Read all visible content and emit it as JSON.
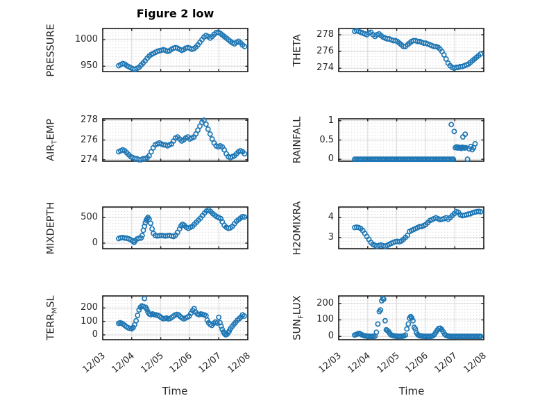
{
  "figure": {
    "title": "Figure 2 low",
    "xlabel": "Time",
    "xtick_labels": [
      "12/03",
      "12/04",
      "12/05",
      "12/06",
      "12/07",
      "12/08"
    ],
    "xlim_days": [
      0,
      5
    ],
    "colors": {
      "marker": "#1f77b4",
      "axes_border": "#1b1b1b",
      "major_grid": "#d9d9d9",
      "minor_grid_dots": "#c4c4c4",
      "text": "#262626"
    }
  },
  "chart_data": [
    {
      "type": "scatter",
      "id": "pressure",
      "title": "Figure 2 low",
      "position": {
        "row": 0,
        "col": 0
      },
      "ylabel_parts": [
        {
          "text": "PRESSURE"
        }
      ],
      "ytick_labels": [
        "950",
        "1000"
      ],
      "ytick_values": [
        950,
        1000
      ],
      "ylim": [
        940,
        1021
      ],
      "x_days": [
        0.55,
        0.62,
        0.69,
        0.76,
        0.83,
        0.9,
        0.97,
        1.04,
        1.11,
        1.18,
        1.25,
        1.32,
        1.39,
        1.46,
        1.53,
        1.6,
        1.67,
        1.74,
        1.81,
        1.88,
        1.95,
        2.02,
        2.09,
        2.16,
        2.23,
        2.3,
        2.37,
        2.44,
        2.51,
        2.58,
        2.65,
        2.72,
        2.79,
        2.86,
        2.93,
        3.0,
        3.07,
        3.14,
        3.21,
        3.28,
        3.35,
        3.42,
        3.49,
        3.56,
        3.63,
        3.7,
        3.77,
        3.84,
        3.91,
        3.98,
        4.05,
        4.12,
        4.19,
        4.26,
        4.33,
        4.4,
        4.47,
        4.54,
        4.61,
        4.68,
        4.75,
        4.82,
        4.89
      ],
      "values": [
        951,
        953,
        955,
        954,
        951,
        949,
        947,
        945,
        944,
        946,
        948,
        952,
        956,
        960,
        965,
        969,
        972,
        974,
        976,
        978,
        979,
        980,
        981,
        980,
        978,
        979,
        982,
        984,
        985,
        984,
        982,
        980,
        981,
        984,
        985,
        984,
        982,
        983,
        986,
        990,
        995,
        1000,
        1005,
        1008,
        1006,
        1003,
        1006,
        1010,
        1013,
        1014,
        1012,
        1009,
        1006,
        1003,
        1000,
        997,
        994,
        992,
        995,
        997,
        994,
        990,
        987
      ]
    },
    {
      "type": "scatter",
      "id": "theta",
      "position": {
        "row": 0,
        "col": 1
      },
      "ylabel_parts": [
        {
          "text": "THETA"
        }
      ],
      "ytick_labels": [
        "274",
        "276",
        "278"
      ],
      "ytick_values": [
        274,
        276,
        278
      ],
      "ylim": [
        273.6,
        278.75
      ],
      "x_days": [
        0.55,
        0.62,
        0.69,
        0.76,
        0.83,
        0.9,
        0.97,
        1.04,
        1.11,
        1.18,
        1.25,
        1.32,
        1.39,
        1.46,
        1.53,
        1.6,
        1.67,
        1.74,
        1.81,
        1.88,
        1.95,
        2.02,
        2.09,
        2.16,
        2.23,
        2.3,
        2.37,
        2.44,
        2.51,
        2.58,
        2.65,
        2.72,
        2.79,
        2.86,
        2.93,
        3.0,
        3.07,
        3.14,
        3.21,
        3.28,
        3.35,
        3.42,
        3.49,
        3.56,
        3.63,
        3.7,
        3.77,
        3.84,
        3.91,
        3.98,
        4.05,
        4.12,
        4.19,
        4.26,
        4.33,
        4.4,
        4.47,
        4.54,
        4.61,
        4.68,
        4.75,
        4.82,
        4.89
      ],
      "values": [
        278.4,
        278.5,
        278.4,
        278.3,
        278.2,
        278.1,
        278.0,
        278.2,
        278.3,
        278.0,
        277.8,
        278.0,
        278.1,
        277.9,
        277.7,
        277.6,
        277.5,
        277.5,
        277.4,
        277.3,
        277.3,
        277.2,
        277.0,
        276.8,
        276.6,
        276.6,
        276.8,
        277.0,
        277.2,
        277.3,
        277.3,
        277.2,
        277.2,
        277.1,
        277.0,
        277.0,
        276.9,
        276.8,
        276.7,
        276.6,
        276.6,
        276.5,
        276.3,
        276.0,
        275.6,
        275.1,
        274.6,
        274.3,
        274.1,
        274.0,
        274.1,
        274.1,
        274.2,
        274.2,
        274.3,
        274.4,
        274.5,
        274.7,
        274.9,
        275.1,
        275.3,
        275.5,
        275.7
      ]
    },
    {
      "type": "scatter",
      "id": "airtemp",
      "position": {
        "row": 1,
        "col": 0
      },
      "ylabel_parts": [
        {
          "text": "AIR"
        },
        {
          "text": "T",
          "sub": true
        },
        {
          "text": "EMP"
        }
      ],
      "ytick_labels": [
        "274",
        "276",
        "278"
      ],
      "ytick_values": [
        274,
        276,
        278
      ],
      "ylim": [
        273.85,
        278.15
      ],
      "x_days": [
        0.55,
        0.62,
        0.69,
        0.76,
        0.83,
        0.9,
        0.97,
        1.04,
        1.11,
        1.18,
        1.25,
        1.32,
        1.39,
        1.46,
        1.53,
        1.6,
        1.67,
        1.74,
        1.81,
        1.88,
        1.95,
        2.02,
        2.09,
        2.16,
        2.23,
        2.3,
        2.37,
        2.44,
        2.51,
        2.58,
        2.65,
        2.72,
        2.79,
        2.86,
        2.93,
        3.0,
        3.07,
        3.14,
        3.21,
        3.28,
        3.35,
        3.42,
        3.49,
        3.56,
        3.63,
        3.7,
        3.77,
        3.84,
        3.91,
        3.98,
        4.05,
        4.12,
        4.19,
        4.26,
        4.33,
        4.4,
        4.47,
        4.54,
        4.61,
        4.68,
        4.75,
        4.82,
        4.89
      ],
      "values": [
        274.8,
        274.9,
        275.0,
        274.9,
        274.7,
        274.5,
        274.3,
        274.2,
        274.1,
        274.1,
        274.0,
        274.0,
        274.1,
        274.1,
        274.2,
        274.4,
        274.8,
        275.2,
        275.5,
        275.6,
        275.7,
        275.6,
        275.5,
        275.5,
        275.4,
        275.5,
        275.6,
        275.9,
        276.2,
        276.3,
        276.1,
        275.9,
        276.0,
        276.2,
        276.3,
        276.1,
        276.2,
        276.3,
        276.6,
        277.0,
        277.4,
        277.8,
        278.0,
        277.6,
        277.1,
        276.6,
        276.1,
        275.7,
        275.4,
        275.3,
        275.4,
        275.3,
        275.0,
        274.6,
        274.3,
        274.2,
        274.3,
        274.4,
        274.6,
        274.8,
        274.9,
        274.8,
        274.6
      ]
    },
    {
      "type": "scatter",
      "id": "rainfall",
      "position": {
        "row": 1,
        "col": 1
      },
      "ylabel_parts": [
        {
          "text": "RAINFALL"
        }
      ],
      "ytick_labels": [
        "0",
        "0.5",
        "1"
      ],
      "ytick_values": [
        0,
        0.5,
        1
      ],
      "ylim": [
        -0.05,
        1.05
      ],
      "x_days": [
        0.55,
        0.6,
        0.65,
        0.7,
        0.75,
        0.8,
        0.85,
        0.9,
        0.95,
        1.0,
        1.05,
        1.1,
        1.15,
        1.2,
        1.25,
        1.3,
        1.35,
        1.4,
        1.45,
        1.5,
        1.55,
        1.6,
        1.65,
        1.7,
        1.75,
        1.8,
        1.85,
        1.9,
        1.95,
        2.0,
        2.05,
        2.1,
        2.15,
        2.2,
        2.25,
        2.3,
        2.35,
        2.4,
        2.45,
        2.5,
        2.55,
        2.6,
        2.65,
        2.7,
        2.75,
        2.8,
        2.85,
        2.9,
        2.95,
        3.0,
        3.05,
        3.1,
        3.15,
        3.2,
        3.25,
        3.3,
        3.35,
        3.4,
        3.45,
        3.5,
        3.55,
        3.6,
        3.65,
        3.7,
        3.75,
        3.8,
        3.85,
        3.9,
        3.95,
        3.88,
        3.98,
        4.02,
        4.06,
        4.1,
        4.14,
        4.18,
        4.22,
        4.26,
        4.3,
        4.34,
        4.38,
        4.28,
        4.36,
        4.44,
        4.5,
        4.55,
        4.6,
        4.65,
        4.7
      ],
      "values": [
        0,
        0,
        0,
        0,
        0,
        0,
        0,
        0,
        0,
        0,
        0,
        0,
        0,
        0,
        0,
        0,
        0,
        0,
        0,
        0,
        0,
        0,
        0,
        0,
        0,
        0,
        0,
        0,
        0,
        0,
        0,
        0,
        0,
        0,
        0,
        0,
        0,
        0,
        0,
        0,
        0,
        0,
        0,
        0,
        0,
        0,
        0,
        0,
        0,
        0,
        0,
        0,
        0,
        0,
        0,
        0,
        0,
        0,
        0,
        0,
        0,
        0,
        0,
        0,
        0,
        0,
        0,
        0,
        0,
        0.9,
        0.72,
        0.3,
        0.32,
        0.29,
        0.31,
        0.3,
        0.28,
        0.31,
        0.3,
        0.29,
        0.3,
        0.58,
        0.65,
        0,
        0.27,
        0.33,
        0.25,
        0.3,
        0.4
      ]
    },
    {
      "type": "scatter",
      "id": "mixdepth",
      "position": {
        "row": 2,
        "col": 0
      },
      "ylabel_parts": [
        {
          "text": "MIXDEPTH"
        }
      ],
      "ytick_labels": [
        "0",
        "500"
      ],
      "ytick_values": [
        0,
        500
      ],
      "ylim": [
        -109,
        708
      ],
      "x_days": [
        0.55,
        0.62,
        0.69,
        0.76,
        0.83,
        0.9,
        0.97,
        1.04,
        1.08,
        1.11,
        1.18,
        1.25,
        1.32,
        1.36,
        1.4,
        1.44,
        1.47,
        1.5,
        1.53,
        1.56,
        1.6,
        1.65,
        1.7,
        1.75,
        1.81,
        1.88,
        1.95,
        2.02,
        2.09,
        2.16,
        2.23,
        2.3,
        2.37,
        2.44,
        2.51,
        2.58,
        2.65,
        2.7,
        2.75,
        2.81,
        2.88,
        2.95,
        3.02,
        3.09,
        3.16,
        3.23,
        3.3,
        3.37,
        3.44,
        3.51,
        3.58,
        3.65,
        3.72,
        3.79,
        3.86,
        3.93,
        4.0,
        4.07,
        4.12,
        4.19,
        4.26,
        4.33,
        4.4,
        4.47,
        4.54,
        4.61,
        4.68,
        4.75,
        4.82,
        4.89
      ],
      "values": [
        90,
        105,
        110,
        100,
        95,
        85,
        65,
        40,
        15,
        45,
        80,
        95,
        100,
        150,
        250,
        330,
        400,
        450,
        480,
        505,
        470,
        390,
        280,
        190,
        150,
        140,
        145,
        150,
        145,
        140,
        145,
        150,
        140,
        130,
        155,
        210,
        280,
        340,
        370,
        350,
        310,
        290,
        310,
        330,
        370,
        410,
        450,
        490,
        540,
        590,
        630,
        650,
        620,
        580,
        550,
        520,
        500,
        480,
        420,
        350,
        310,
        290,
        300,
        330,
        380,
        430,
        460,
        490,
        520,
        510
      ]
    },
    {
      "type": "scatter",
      "id": "h2omixra",
      "position": {
        "row": 2,
        "col": 1
      },
      "ylabel_parts": [
        {
          "text": "H2OMIXRA"
        }
      ],
      "ytick_labels": [
        "3",
        "4"
      ],
      "ytick_values": [
        3,
        4
      ],
      "ylim": [
        2.43,
        4.54
      ],
      "x_days": [
        0.55,
        0.62,
        0.69,
        0.76,
        0.83,
        0.9,
        0.97,
        1.04,
        1.11,
        1.18,
        1.25,
        1.32,
        1.39,
        1.46,
        1.53,
        1.6,
        1.67,
        1.74,
        1.81,
        1.88,
        1.95,
        2.02,
        2.09,
        2.16,
        2.23,
        2.3,
        2.37,
        2.44,
        2.51,
        2.58,
        2.65,
        2.72,
        2.79,
        2.86,
        2.93,
        3.0,
        3.07,
        3.14,
        3.21,
        3.28,
        3.35,
        3.42,
        3.49,
        3.56,
        3.63,
        3.7,
        3.77,
        3.84,
        3.91,
        3.98,
        4.05,
        4.12,
        4.19,
        4.26,
        4.33,
        4.4,
        4.47,
        4.54,
        4.61,
        4.68,
        4.75,
        4.82,
        4.89
      ],
      "values": [
        3.5,
        3.52,
        3.5,
        3.45,
        3.35,
        3.2,
        3.05,
        2.9,
        2.75,
        2.65,
        2.6,
        2.55,
        2.6,
        2.62,
        2.58,
        2.55,
        2.6,
        2.65,
        2.7,
        2.75,
        2.78,
        2.8,
        2.78,
        2.82,
        2.9,
        3.0,
        3.1,
        3.3,
        3.35,
        3.4,
        3.45,
        3.5,
        3.55,
        3.55,
        3.6,
        3.65,
        3.75,
        3.85,
        3.9,
        3.95,
        4.0,
        3.95,
        3.9,
        3.92,
        3.95,
        4.0,
        3.92,
        4.0,
        4.1,
        4.2,
        4.3,
        4.28,
        4.15,
        4.1,
        4.12,
        4.15,
        4.18,
        4.2,
        4.25,
        4.28,
        4.3,
        4.32,
        4.3
      ]
    },
    {
      "type": "scatter",
      "id": "terrmsl",
      "position": {
        "row": 3,
        "col": 0
      },
      "ylabel_parts": [
        {
          "text": "TERR"
        },
        {
          "text": "M",
          "sub": true
        },
        {
          "text": "SL"
        }
      ],
      "ytick_labels": [
        "0",
        "100",
        "200"
      ],
      "ytick_values": [
        0,
        100,
        200
      ],
      "ylim": [
        -36,
        289
      ],
      "x_days": [
        0.55,
        0.6,
        0.65,
        0.7,
        0.76,
        0.82,
        0.88,
        0.94,
        1.0,
        1.05,
        1.1,
        1.15,
        1.2,
        1.25,
        1.3,
        1.35,
        1.4,
        1.44,
        1.48,
        1.52,
        1.56,
        1.6,
        1.66,
        1.72,
        1.78,
        1.84,
        1.9,
        1.96,
        2.02,
        2.08,
        2.14,
        2.2,
        2.26,
        2.32,
        2.38,
        2.44,
        2.5,
        2.56,
        2.62,
        2.68,
        2.74,
        2.8,
        2.86,
        2.92,
        2.98,
        3.04,
        3.1,
        3.15,
        3.2,
        3.26,
        3.32,
        3.38,
        3.44,
        3.5,
        3.56,
        3.6,
        3.65,
        3.7,
        3.76,
        3.82,
        3.88,
        3.94,
        4.0,
        4.04,
        4.08,
        4.12,
        4.16,
        4.2,
        4.24,
        4.28,
        4.32,
        4.36,
        4.4,
        4.46,
        4.52,
        4.58,
        4.64,
        4.7,
        4.76,
        4.82,
        4.88
      ],
      "values": [
        85,
        90,
        85,
        80,
        70,
        60,
        52,
        48,
        45,
        55,
        75,
        105,
        145,
        185,
        205,
        215,
        210,
        270,
        205,
        190,
        170,
        155,
        150,
        155,
        150,
        148,
        145,
        138,
        128,
        120,
        122,
        125,
        118,
        122,
        130,
        140,
        148,
        152,
        147,
        135,
        125,
        118,
        125,
        132,
        140,
        160,
        180,
        195,
        170,
        155,
        150,
        155,
        152,
        148,
        142,
        110,
        90,
        78,
        70,
        85,
        95,
        88,
        130,
        90,
        65,
        40,
        20,
        8,
        0,
        4,
        15,
        28,
        45,
        62,
        78,
        92,
        108,
        120,
        132,
        148,
        140
      ]
    },
    {
      "type": "scatter",
      "id": "sunflux",
      "position": {
        "row": 3,
        "col": 1
      },
      "ylabel_parts": [
        {
          "text": "SUN"
        },
        {
          "text": "F",
          "sub": true
        },
        {
          "text": "LUX"
        }
      ],
      "ytick_labels": [
        "0",
        "100",
        "200"
      ],
      "ytick_values": [
        0,
        100,
        200
      ],
      "ylim": [
        -20,
        245
      ],
      "x_days": [
        0.55,
        0.6,
        0.65,
        0.7,
        0.75,
        0.8,
        0.85,
        0.9,
        0.95,
        1.0,
        1.05,
        1.1,
        1.15,
        1.2,
        1.25,
        1.3,
        1.35,
        1.4,
        1.44,
        1.48,
        1.52,
        1.55,
        1.6,
        1.64,
        1.68,
        1.72,
        1.76,
        1.8,
        1.85,
        1.9,
        1.95,
        2.0,
        2.05,
        2.1,
        2.15,
        2.2,
        2.25,
        2.3,
        2.35,
        2.4,
        2.44,
        2.48,
        2.52,
        2.56,
        2.6,
        2.64,
        2.68,
        2.72,
        2.76,
        2.8,
        2.85,
        2.9,
        2.95,
        3.0,
        3.05,
        3.1,
        3.15,
        3.2,
        3.25,
        3.3,
        3.35,
        3.4,
        3.45,
        3.5,
        3.55,
        3.6,
        3.65,
        3.7,
        3.75,
        3.8,
        3.85,
        3.9,
        3.95,
        4.0,
        4.05,
        4.1,
        4.15,
        4.2,
        4.25,
        4.3,
        4.35,
        4.4,
        4.45,
        4.5,
        4.55,
        4.6,
        4.65,
        4.7,
        4.75,
        4.8,
        4.85,
        4.89
      ],
      "values": [
        8,
        12,
        15,
        18,
        15,
        10,
        6,
        3,
        2,
        1,
        0,
        0,
        0,
        0,
        2,
        25,
        75,
        150,
        160,
        215,
        230,
        225,
        95,
        40,
        35,
        28,
        18,
        10,
        6,
        3,
        2,
        1,
        0,
        0,
        0,
        1,
        3,
        8,
        45,
        75,
        110,
        120,
        112,
        95,
        55,
        45,
        22,
        12,
        6,
        3,
        2,
        1,
        0,
        0,
        0,
        0,
        0,
        1,
        4,
        12,
        25,
        38,
        48,
        50,
        42,
        28,
        14,
        6,
        3,
        1,
        0,
        0,
        0,
        0,
        0,
        0,
        0,
        0,
        0,
        0,
        0,
        0,
        0,
        0,
        0,
        0,
        0,
        0,
        0,
        0,
        0,
        0
      ]
    }
  ]
}
